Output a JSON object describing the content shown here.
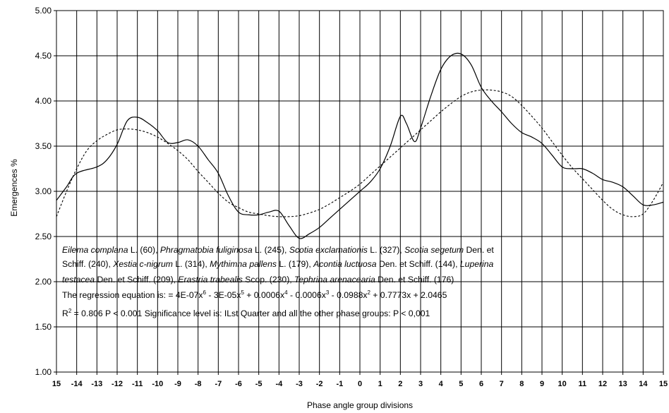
{
  "chart_data": {
    "type": "line",
    "xlabel": "Phase angle group divisions",
    "ylabel": "Emergences %",
    "ylim": [
      1.0,
      5.0
    ],
    "y_ticks": [
      "1.00",
      "1.50",
      "2.00",
      "2.50",
      "3.00",
      "3.50",
      "4.00",
      "4.50",
      "5.00"
    ],
    "x_tick_labels": [
      "15",
      "-14",
      "-13",
      "-12",
      "-11",
      "-10",
      "-9",
      "-8",
      "-7",
      "-6",
      "-5",
      "-4",
      "-3",
      "-2",
      "-1",
      "0",
      "1",
      "2",
      "3",
      "4",
      "5",
      "6",
      "7",
      "8",
      "9",
      "10",
      "11",
      "12",
      "13",
      "14",
      "15"
    ],
    "grid": true,
    "series": [
      {
        "style": "solid",
        "x": [
          -15,
          -14.5,
          -14,
          -13,
          -12.5,
          -12,
          -11.5,
          -11,
          -10.5,
          -10,
          -9.5,
          -9,
          -8.5,
          -8,
          -7.5,
          -7,
          -6.5,
          -6,
          -5.5,
          -5,
          -4.5,
          -4,
          -3.5,
          -3,
          -2.5,
          -2,
          -1.5,
          -1,
          -0.5,
          0,
          0.5,
          1,
          1.5,
          2,
          2.3,
          2.7,
          3,
          3.5,
          4,
          4.5,
          5,
          5.5,
          6,
          6.5,
          7,
          7.5,
          8,
          8.5,
          9,
          9.5,
          10,
          10.5,
          11,
          11.5,
          12,
          12.5,
          13,
          13.5,
          14,
          14.5,
          15
        ],
        "y": [
          2.9,
          3.05,
          3.2,
          3.27,
          3.35,
          3.52,
          3.78,
          3.82,
          3.76,
          3.67,
          3.54,
          3.54,
          3.57,
          3.5,
          3.35,
          3.2,
          2.95,
          2.77,
          2.74,
          2.74,
          2.77,
          2.78,
          2.62,
          2.48,
          2.53,
          2.6,
          2.7,
          2.8,
          2.9,
          3.0,
          3.1,
          3.25,
          3.5,
          3.83,
          3.75,
          3.55,
          3.7,
          4.05,
          4.35,
          4.5,
          4.52,
          4.4,
          4.15,
          4.0,
          3.88,
          3.75,
          3.65,
          3.6,
          3.53,
          3.4,
          3.27,
          3.25,
          3.25,
          3.2,
          3.13,
          3.1,
          3.05,
          2.95,
          2.85,
          2.85,
          2.88
        ]
      },
      {
        "style": "dashed",
        "x": [
          -15,
          -14.5,
          -14,
          -13.5,
          -13,
          -12.5,
          -12,
          -11.5,
          -11,
          -10.5,
          -10,
          -9.5,
          -9,
          -8.5,
          -8,
          -7.5,
          -7,
          -6.5,
          -6,
          -5.5,
          -5,
          -4.5,
          -4,
          -3.5,
          -3,
          -2.5,
          -2,
          -1.5,
          -1,
          -0.5,
          0,
          0.5,
          1,
          1.5,
          2,
          2.5,
          3,
          3.5,
          4,
          4.5,
          5,
          5.5,
          6,
          6.5,
          7,
          7.5,
          8,
          8.5,
          9,
          9.5,
          10,
          10.5,
          11,
          11.5,
          12,
          12.5,
          13,
          13.5,
          14,
          14.5,
          15
        ],
        "y": [
          2.72,
          3.0,
          3.25,
          3.45,
          3.56,
          3.63,
          3.68,
          3.69,
          3.68,
          3.65,
          3.6,
          3.53,
          3.45,
          3.35,
          3.22,
          3.1,
          2.98,
          2.88,
          2.82,
          2.77,
          2.75,
          2.73,
          2.72,
          2.72,
          2.73,
          2.76,
          2.8,
          2.86,
          2.93,
          3.0,
          3.08,
          3.18,
          3.28,
          3.38,
          3.48,
          3.58,
          3.68,
          3.78,
          3.88,
          3.97,
          4.05,
          4.1,
          4.12,
          4.12,
          4.1,
          4.05,
          3.95,
          3.83,
          3.7,
          3.55,
          3.4,
          3.26,
          3.14,
          3.02,
          2.9,
          2.8,
          2.74,
          2.72,
          2.75,
          2.9,
          3.1
        ]
      }
    ]
  },
  "annotation": {
    "line1": {
      "sp1": "Eilema complana",
      "a1": " L. (60), ",
      "sp2": "Phragmatobia fuliginosa",
      "a2": " L. (245), ",
      "sp3": "Scotia exclamationis",
      "a3": " L. (327), ",
      "sp4": "Scotia segetum",
      "a4": " Den. et"
    },
    "line2": {
      "a0": "Schiff. (240), ",
      "sp1": "Xestia c-nigrum",
      "a1": " L. (314), ",
      "sp2": "Mythimna pallens",
      "a2": " L. (179), ",
      "sp3": "Acontia luctuosa",
      "a3": " Den. et Schiff. (144), ",
      "sp4": "Luperina"
    },
    "line3": {
      "sp1": "testacea",
      "a1": " Den. et Schiff. (209), ",
      "sp2": "Erastria trabealis",
      "a2": " Scop. (230), ",
      "sp3": "Tephrina arenacearia",
      "a3": " Den. et Schiff. (176)"
    },
    "equation": {
      "p1": "The regression equation is:  = 4E-07x",
      "e1": "6",
      "p2": " - 3E-05x",
      "e2": "5",
      "p3": " + 0.0006x",
      "e3": "4",
      "p4": " - 0.0006x",
      "e4": "3",
      "p5": " - 0.0988x",
      "e5": "2",
      "p6": " + 0.7773x + 2.0465"
    },
    "stats": {
      "r": "R",
      "e": "2",
      "text": " = 0.806 P < 0.001 Significance level is: ILst Quarter and all the other phase groups: P < 0,001"
    }
  }
}
